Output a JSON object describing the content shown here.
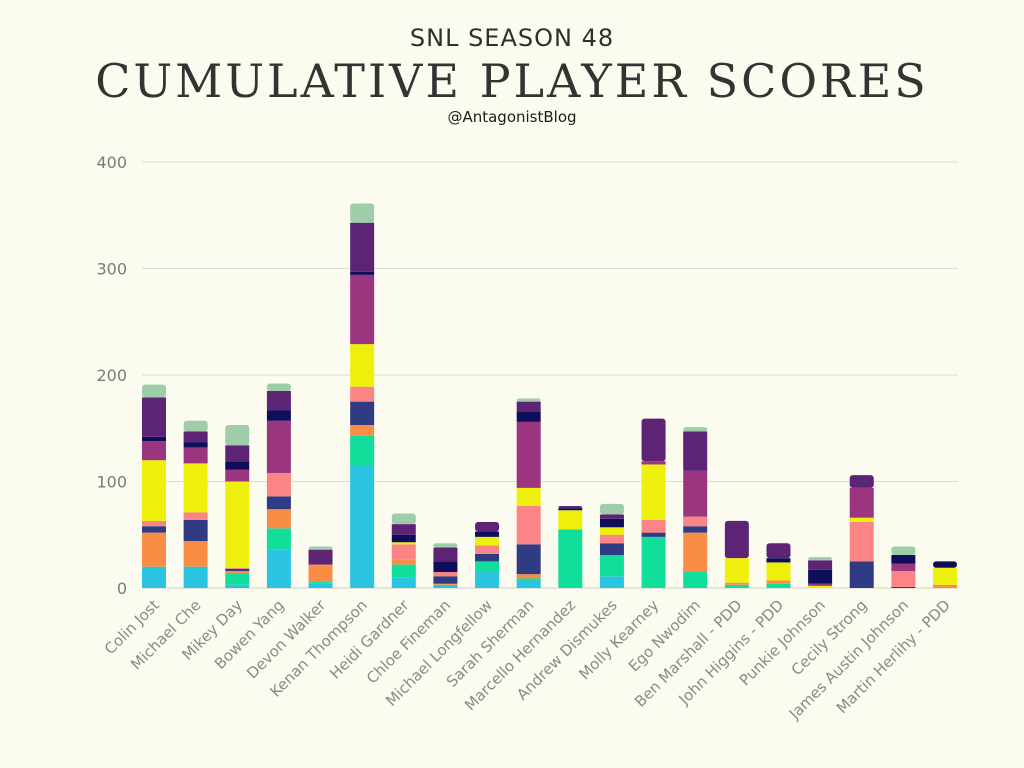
{
  "header": {
    "supertitle": "SNL SEASON 48",
    "title": "CUMULATIVE PLAYER SCORES",
    "handle": "@AntagonistBlog"
  },
  "chart_data": {
    "type": "bar",
    "stacked": true,
    "grid": true,
    "ylim": [
      0,
      400
    ],
    "yticks": [
      0,
      100,
      200,
      300,
      400
    ],
    "categories": [
      "Colin Jost",
      "Michael Che",
      "Mikey Day",
      "Bowen Yang",
      "Devon Walker",
      "Kenan Thompson",
      "Heidi Gardner",
      "Chloe Fineman",
      "Michael Longfellow",
      "Sarah Sherman",
      "Marcello Hernandez",
      "Andrew Dismukes",
      "Molly Kearney",
      "Ego Nwodim",
      "Ben Marshall - PDD",
      "John Higgins - PDD",
      "Punkie Johnson",
      "Cecily Strong",
      "James Austin Johnson",
      "Martin Herlihy - PDD"
    ],
    "series": [
      {
        "color": "#2ac4e0",
        "values": [
          20,
          20,
          3,
          36,
          4,
          115,
          10,
          3,
          16,
          7,
          0,
          11,
          0,
          0,
          0,
          0,
          0,
          0,
          0,
          0
        ]
      },
      {
        "color": "#12de9c",
        "values": [
          0,
          0,
          11,
          20,
          2,
          28,
          12,
          0,
          9,
          2,
          55,
          20,
          48,
          15,
          3,
          4,
          0,
          0,
          0,
          0
        ]
      },
      {
        "color": "#fa8d46",
        "values": [
          32,
          24,
          2,
          18,
          16,
          10,
          5,
          1,
          0,
          4,
          0,
          0,
          0,
          37,
          2,
          3,
          0,
          0,
          0,
          3
        ]
      },
      {
        "color": "#2f3b83",
        "values": [
          6,
          20,
          2,
          12,
          0,
          22,
          0,
          7,
          7,
          28,
          0,
          11,
          4,
          6,
          0,
          0,
          0,
          25,
          1,
          0
        ]
      },
      {
        "color": "#fb8585",
        "values": [
          5,
          7,
          1,
          22,
          0,
          14,
          14,
          4,
          8,
          36,
          0,
          8,
          12,
          9,
          0,
          0,
          0,
          37,
          15,
          0
        ]
      },
      {
        "color": "#eef00c",
        "values": [
          57,
          46,
          81,
          0,
          0,
          40,
          2,
          0,
          8,
          17,
          18,
          7,
          52,
          0,
          23,
          17,
          2,
          4,
          0,
          16
        ]
      },
      {
        "color": "#9b3580",
        "values": [
          18,
          15,
          11,
          49,
          0,
          65,
          0,
          0,
          0,
          62,
          0,
          0,
          3,
          43,
          0,
          0,
          2,
          28,
          7,
          0
        ]
      },
      {
        "color": "#0e0e5a",
        "values": [
          4,
          5,
          8,
          10,
          0,
          3,
          7,
          10,
          5,
          10,
          2,
          8,
          0,
          0,
          0,
          4,
          13,
          0,
          8,
          6
        ]
      },
      {
        "color": "#5d2475",
        "values": [
          37,
          10,
          15,
          18,
          14,
          46,
          10,
          13,
          9,
          9,
          2,
          4,
          40,
          37,
          35,
          14,
          9,
          12,
          0,
          0
        ]
      },
      {
        "color": "#9fcdaa",
        "values": [
          12,
          10,
          19,
          7,
          3,
          18,
          10,
          4,
          0,
          3,
          0,
          10,
          0,
          4,
          0,
          0,
          3,
          0,
          8,
          0
        ]
      }
    ]
  }
}
